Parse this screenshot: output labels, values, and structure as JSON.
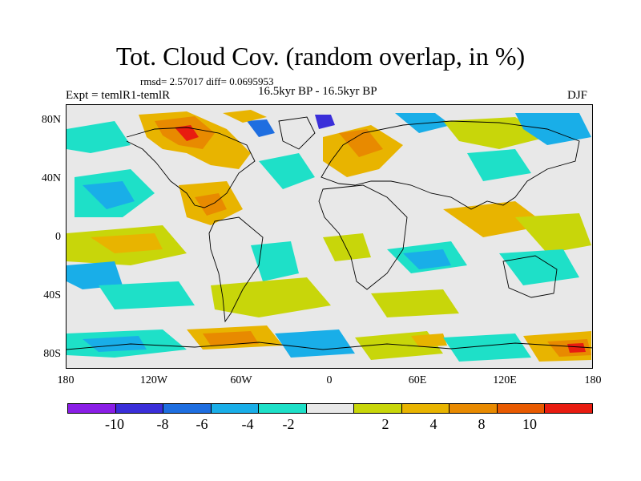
{
  "title": "Tot. Cloud Cov. (random overlap, in %)",
  "stats": "rmsd= 2.57017  diff= 0.0695953",
  "experiment": "Expt = temlR1-temlR",
  "period": "16.5kyr BP - 16.5kyr BP",
  "season": "DJF",
  "lat_ticks": [
    "80N",
    "40N",
    "0",
    "40S",
    "80S"
  ],
  "lon_ticks": [
    "180",
    "120W",
    "60W",
    "0",
    "60E",
    "120E",
    "180"
  ],
  "colorbar": {
    "colors": [
      "#8a1ee6",
      "#3a2ed9",
      "#1e6ee0",
      "#19aee8",
      "#1ee0c8",
      "#e8e8e8",
      "#c8d60a",
      "#e8b400",
      "#e88a00",
      "#e85a00",
      "#e81c10"
    ],
    "labels": [
      "-10",
      "-8",
      "-6",
      "-4",
      "-2",
      "2",
      "4",
      "8",
      "10"
    ]
  },
  "palette": {
    "neutral": "#e8e8e8",
    "neg_strong": "#8a1ee6",
    "neg": "#1e6ee0",
    "neg_light": "#19aee8",
    "neg_weak": "#1ee0c8",
    "pos_weak": "#c8d60a",
    "pos": "#e8b400",
    "pos_strong": "#e88a00",
    "pos_max": "#e81c10"
  }
}
